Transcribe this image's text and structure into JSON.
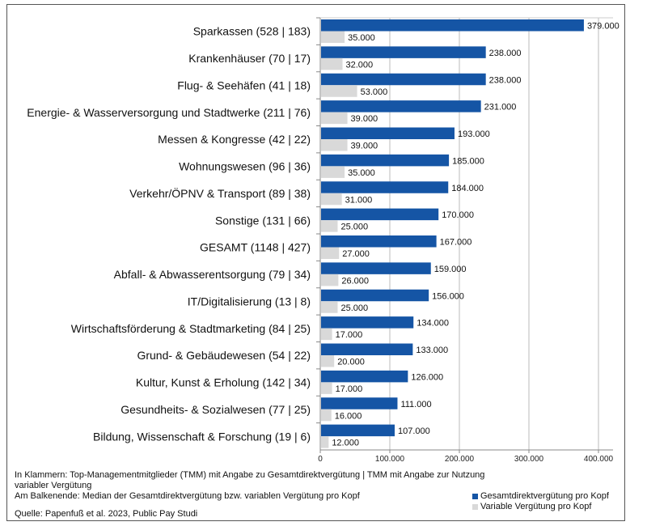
{
  "chart_data": {
    "type": "bar",
    "orientation": "horizontal",
    "categories": [
      "Sparkassen (528 | 183)",
      "Krankenhäuser (70 | 17)",
      "Flug- & Seehäfen (41 | 18)",
      "Energie- & Wasserversorgung und Stadtwerke  (211 | 76)",
      "Messen & Kongresse (42 | 22)",
      "Wohnungswesen (96 | 36)",
      "Verkehr/ÖPNV & Transport (89 | 38)",
      "Sonstige (131 | 66)",
      "GESAMT (1148 | 427)",
      "Abfall- & Abwasserentsorgung (79 | 34)",
      "IT/Digitalisierung (13 | 8)",
      "Wirtschaftsförderung & Stadtmarketing (84 | 25)",
      "Grund- & Gebäudewesen (54 | 22)",
      "Kultur, Kunst & Erholung (142 | 34)",
      "Gesundheits- & Sozialwesen (77 | 25)",
      "Bildung, Wissenschaft & Forschung (19 | 6)"
    ],
    "series": [
      {
        "name": "Gesamtdirektvergütung pro Kopf",
        "color": "#1555a5",
        "values": [
          379000,
          238000,
          238000,
          231000,
          193000,
          185000,
          184000,
          170000,
          167000,
          159000,
          156000,
          134000,
          133000,
          126000,
          111000,
          107000
        ],
        "labels": [
          "379.000",
          "238.000",
          "238.000",
          "231.000",
          "193.000",
          "185.000",
          "184.000",
          "170.000",
          "167.000",
          "159.000",
          "156.000",
          "134.000",
          "133.000",
          "126.000",
          "111.000",
          "107.000"
        ]
      },
      {
        "name": "Variable Vergütung pro Kopf",
        "color": "#d9d9d9",
        "values": [
          35000,
          32000,
          53000,
          39000,
          39000,
          35000,
          31000,
          25000,
          27000,
          26000,
          25000,
          17000,
          20000,
          17000,
          16000,
          12000
        ],
        "labels": [
          "35.000",
          "32.000",
          "53.000",
          "39.000",
          "39.000",
          "35.000",
          "31.000",
          "25.000",
          "27.000",
          "26.000",
          "25.000",
          "17.000",
          "20.000",
          "17.000",
          "16.000",
          "12.000"
        ]
      }
    ],
    "xlim": [
      0,
      400000
    ],
    "xticks": [
      0,
      100000,
      200000,
      300000,
      400000
    ],
    "xtick_labels": [
      "0",
      "100.000",
      "200.000",
      "300.000",
      "400.000"
    ],
    "grid": "vertical",
    "legend_position": "bottom-right"
  },
  "notes": {
    "line1": "In Klammern: Top-Managementmitglieder (TMM) mit Angabe zu Gesamtdirektvergütung | TMM mit Angabe zur Nutzung",
    "line2": "variabler Vergütung",
    "line3": "Am Balkenende: Median der Gesamtdirektvergütung bzw. variablen Vergütung pro Kopf",
    "source": "Quelle: Papenfuß et al. 2023, Public Pay Studi"
  }
}
